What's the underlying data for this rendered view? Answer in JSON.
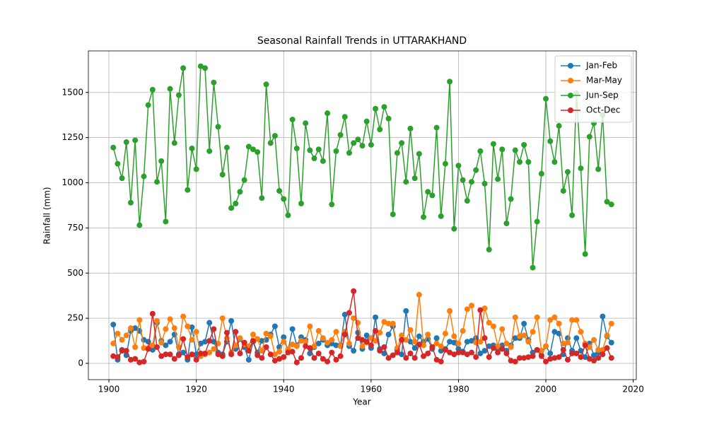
{
  "chart_data": {
    "type": "line",
    "title": "Seasonal Rainfall Trends in UTTARAKHAND",
    "xlabel": "Year",
    "ylabel": "Rainfall (mm)",
    "x": [
      1901,
      1902,
      1903,
      1904,
      1905,
      1906,
      1907,
      1908,
      1909,
      1910,
      1911,
      1912,
      1913,
      1914,
      1915,
      1916,
      1917,
      1918,
      1919,
      1920,
      1921,
      1922,
      1923,
      1924,
      1925,
      1926,
      1927,
      1928,
      1929,
      1930,
      1931,
      1932,
      1933,
      1934,
      1935,
      1936,
      1937,
      1938,
      1939,
      1940,
      1941,
      1942,
      1943,
      1944,
      1945,
      1946,
      1947,
      1948,
      1949,
      1950,
      1951,
      1952,
      1953,
      1954,
      1955,
      1956,
      1957,
      1958,
      1959,
      1960,
      1961,
      1962,
      1963,
      1964,
      1965,
      1966,
      1967,
      1968,
      1969,
      1970,
      1971,
      1972,
      1973,
      1974,
      1975,
      1976,
      1977,
      1978,
      1979,
      1980,
      1981,
      1982,
      1983,
      1984,
      1985,
      1986,
      1987,
      1988,
      1989,
      1990,
      1991,
      1992,
      1993,
      1994,
      1995,
      1996,
      1997,
      1998,
      1999,
      2000,
      2001,
      2002,
      2003,
      2004,
      2005,
      2006,
      2007,
      2008,
      2009,
      2010,
      2011,
      2012,
      2013,
      2014,
      2015
    ],
    "series": [
      {
        "name": "Jan-Feb",
        "color": "#1f77b4",
        "values": [
          215,
          20,
          75,
          45,
          180,
          195,
          180,
          130,
          120,
          75,
          225,
          125,
          100,
          120,
          160,
          50,
          60,
          20,
          200,
          50,
          110,
          120,
          225,
          120,
          60,
          50,
          120,
          235,
          80,
          135,
          90,
          20,
          120,
          60,
          125,
          130,
          160,
          205,
          90,
          145,
          70,
          190,
          100,
          145,
          130,
          55,
          90,
          110,
          130,
          100,
          110,
          100,
          100,
          270,
          95,
          70,
          170,
          80,
          155,
          85,
          255,
          80,
          55,
          160,
          205,
          75,
          50,
          290,
          120,
          85,
          150,
          120,
          135,
          80,
          140,
          70,
          80,
          120,
          115,
          80,
          65,
          120,
          125,
          140,
          55,
          70,
          95,
          100,
          85,
          100,
          70,
          100,
          140,
          140,
          220,
          130,
          60,
          75,
          45,
          95,
          55,
          175,
          165,
          50,
          140,
          70,
          140,
          70,
          35,
          110,
          45,
          60,
          260,
          150,
          115
        ]
      },
      {
        "name": "Mar-May",
        "color": "#ff7f0e",
        "values": [
          110,
          165,
          130,
          155,
          195,
          90,
          240,
          85,
          85,
          100,
          235,
          115,
          190,
          245,
          195,
          90,
          260,
          205,
          130,
          175,
          40,
          50,
          60,
          80,
          110,
          250,
          140,
          60,
          100,
          140,
          105,
          95,
          160,
          135,
          70,
          165,
          150,
          50,
          65,
          120,
          80,
          105,
          95,
          125,
          120,
          205,
          95,
          180,
          140,
          115,
          130,
          175,
          95,
          175,
          110,
          250,
          225,
          95,
          115,
          140,
          125,
          170,
          230,
          220,
          220,
          85,
          155,
          130,
          185,
          120,
          380,
          100,
          160,
          90,
          110,
          95,
          165,
          290,
          150,
          110,
          180,
          300,
          320,
          115,
          120,
          305,
          225,
          205,
          95,
          190,
          110,
          90,
          255,
          150,
          155,
          120,
          175,
          255,
          70,
          95,
          240,
          255,
          220,
          110,
          115,
          240,
          240,
          175,
          110,
          90,
          130,
          75,
          75,
          155,
          220
        ]
      },
      {
        "name": "Jun-Sep",
        "color": "#2ca02c",
        "values": [
          1195,
          1105,
          1025,
          1225,
          890,
          1235,
          765,
          1035,
          1430,
          1515,
          1005,
          1120,
          785,
          1520,
          1220,
          1485,
          1635,
          960,
          1190,
          1075,
          1645,
          1635,
          1175,
          1555,
          1310,
          1045,
          1195,
          860,
          885,
          950,
          1015,
          1200,
          1185,
          1170,
          915,
          1545,
          1220,
          1260,
          955,
          910,
          820,
          1350,
          1190,
          885,
          1330,
          1180,
          1135,
          1185,
          1120,
          1385,
          880,
          1175,
          1265,
          1365,
          1165,
          1220,
          1240,
          1205,
          1340,
          1210,
          1410,
          1295,
          1420,
          1355,
          825,
          1165,
          1220,
          1005,
          1300,
          1025,
          1160,
          810,
          950,
          930,
          1305,
          815,
          1105,
          1560,
          745,
          1095,
          1015,
          900,
          1005,
          1070,
          1175,
          995,
          630,
          1215,
          1020,
          1185,
          775,
          910,
          1180,
          1115,
          1210,
          1115,
          530,
          785,
          1050,
          1465,
          1230,
          1115,
          1315,
          955,
          1060,
          820,
          1495,
          1080,
          605,
          1255,
          1330,
          1075,
          1375,
          895,
          880
        ]
      },
      {
        "name": "Oct-Dec",
        "color": "#d62728",
        "values": [
          40,
          35,
          70,
          70,
          20,
          25,
          5,
          10,
          80,
          275,
          90,
          40,
          50,
          50,
          25,
          45,
          135,
          35,
          50,
          20,
          55,
          55,
          125,
          190,
          50,
          40,
          170,
          50,
          175,
          55,
          115,
          70,
          125,
          45,
          30,
          90,
          50,
          15,
          25,
          35,
          60,
          65,
          5,
          30,
          95,
          85,
          30,
          55,
          25,
          10,
          60,
          20,
          40,
          160,
          280,
          400,
          140,
          130,
          120,
          100,
          180,
          70,
          90,
          30,
          45,
          60,
          130,
          30,
          55,
          30,
          105,
          40,
          55,
          90,
          20,
          10,
          75,
          60,
          50,
          60,
          60,
          50,
          60,
          35,
          295,
          140,
          35,
          85,
          60,
          80,
          55,
          15,
          10,
          30,
          30,
          35,
          40,
          75,
          40,
          10,
          25,
          30,
          35,
          75,
          20,
          55,
          55,
          35,
          100,
          25,
          15,
          30,
          50,
          85,
          30
        ]
      }
    ],
    "xlim": [
      1895.3,
      2020.7
    ],
    "xticks": [
      1900,
      1920,
      1940,
      1960,
      1980,
      2000,
      2020
    ],
    "ylim": [
      -90,
      1730
    ],
    "yticks": [
      0,
      250,
      500,
      750,
      1000,
      1250,
      1500
    ],
    "grid": true,
    "legend": "upper right"
  }
}
